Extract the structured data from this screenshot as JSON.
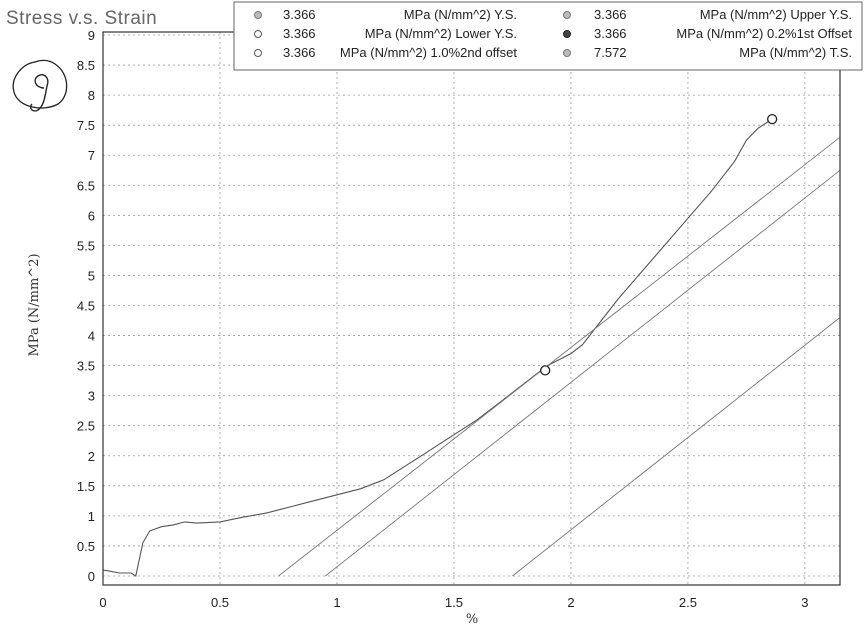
{
  "chart_data": {
    "type": "line",
    "title": "Stress v.s. Strain",
    "xlabel": "%",
    "ylabel": "MPa (N/mm^2)",
    "xlim": [
      0,
      3.15
    ],
    "ylim": [
      -0.15,
      9.05
    ],
    "x_ticks": [
      "0",
      "0.5",
      "1",
      "1.5",
      "2",
      "2.5",
      "3"
    ],
    "y_ticks": [
      "0",
      "0.5",
      "1",
      "1.5",
      "2",
      "2.5",
      "3",
      "3.5",
      "4",
      "4.5",
      "5",
      "5.5",
      "6",
      "6.5",
      "7",
      "7.5",
      "8",
      "8.5",
      "9"
    ],
    "grid": true,
    "legend_position": "top-right",
    "handwritten_annotation": "g",
    "legend": [
      {
        "marker": "gray-circle",
        "value": "3.366",
        "text": "MPa (N/mm^2) Y.S."
      },
      {
        "marker": "gray-circle",
        "value": "3.366",
        "text": "MPa (N/mm^2) Upper Y.S."
      },
      {
        "marker": "open-circle",
        "value": "3.366",
        "text": "MPa (N/mm^2) Lower Y.S."
      },
      {
        "marker": "filled-circle",
        "value": "3.366",
        "text": "MPa (N/mm^2) 0.2%1st Offset"
      },
      {
        "marker": "open-circle",
        "value": "3.366",
        "text": "MPa (N/mm^2) 1.0%2nd offset"
      },
      {
        "marker": "gray-circle",
        "value": "7.572",
        "text": "MPa (N/mm^2) T.S."
      }
    ],
    "series": [
      {
        "type": "curve",
        "x": [
          0,
          0.03,
          0.07,
          0.12,
          0.14,
          0.17,
          0.2,
          0.25,
          0.3,
          0.35,
          0.4,
          0.5,
          0.6,
          0.7,
          0.8,
          0.9,
          1.0,
          1.1,
          1.2,
          1.3,
          1.4,
          1.5,
          1.6,
          1.7,
          1.8,
          1.85,
          1.9,
          2.0,
          2.05,
          2.1,
          2.2,
          2.3,
          2.4,
          2.5,
          2.6,
          2.7,
          2.75,
          2.8,
          2.86
        ],
        "y": [
          0.1,
          0.08,
          0.05,
          0.05,
          0.0,
          0.55,
          0.75,
          0.82,
          0.85,
          0.9,
          0.88,
          0.9,
          0.98,
          1.05,
          1.15,
          1.25,
          1.35,
          1.45,
          1.6,
          1.85,
          2.1,
          2.35,
          2.6,
          2.9,
          3.2,
          3.35,
          3.5,
          3.7,
          3.85,
          4.1,
          4.6,
          5.05,
          5.5,
          5.95,
          6.4,
          6.9,
          7.25,
          7.45,
          7.6
        ]
      },
      {
        "type": "offset-line",
        "x": [
          0.75,
          3.15
        ],
        "y": [
          0,
          7.3
        ]
      },
      {
        "type": "offset-line",
        "x": [
          0.95,
          3.15
        ],
        "y": [
          0,
          6.75
        ]
      },
      {
        "type": "offset-line",
        "x": [
          1.75,
          3.15
        ],
        "y": [
          0,
          4.3
        ]
      }
    ],
    "markers": [
      {
        "x": 1.89,
        "y": 3.42,
        "style": "open-circle"
      },
      {
        "x": 2.86,
        "y": 7.6,
        "style": "open-circle"
      }
    ]
  }
}
